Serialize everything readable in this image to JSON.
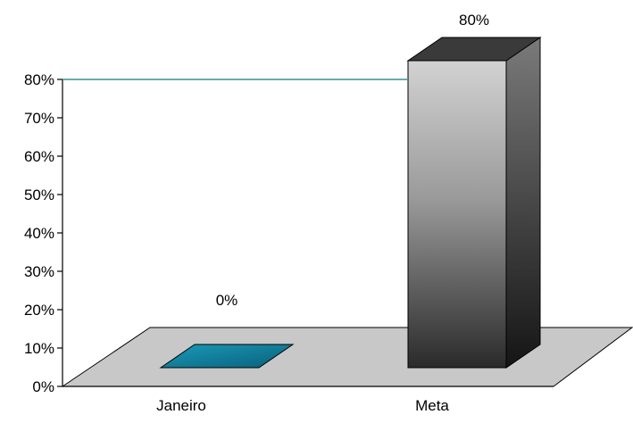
{
  "chart_data": {
    "type": "bar",
    "categories": [
      "Janeiro",
      "Meta"
    ],
    "values": [
      0,
      80
    ],
    "value_format": "percent",
    "data_labels": [
      "0%",
      "80%"
    ],
    "y_ticks": [
      "0%",
      "10%",
      "20%",
      "30%",
      "40%",
      "50%",
      "60%",
      "70%",
      "80%"
    ],
    "ylim": [
      0,
      80
    ],
    "title": "",
    "xlabel": "",
    "ylabel": "",
    "legend": "none",
    "grid": false,
    "style": "3d-columns",
    "reference_line": {
      "value": 80,
      "color": "#3a8f94"
    },
    "colors": {
      "Janeiro": "#0e7f9c",
      "Meta": "#8a8a8a",
      "floor": "#c8c8c8",
      "axis": "#000000"
    }
  }
}
